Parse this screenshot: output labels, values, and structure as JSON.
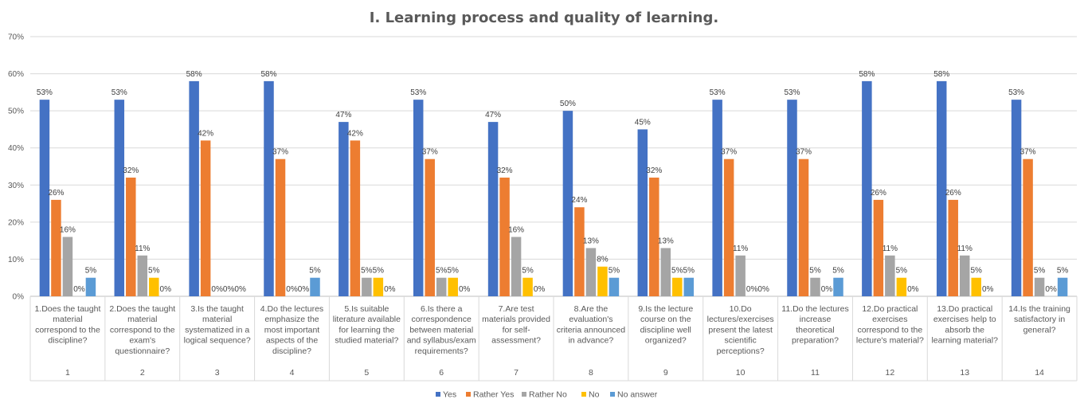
{
  "chart_data": {
    "type": "bar",
    "title": "I. Learning process and quality of learning.",
    "xlabel": "",
    "ylabel": "",
    "ylim": [
      0,
      70
    ],
    "yticks": [
      "0%",
      "10%",
      "20%",
      "30%",
      "40%",
      "50%",
      "60%",
      "70%"
    ],
    "grid": true,
    "legend_position": "bottom",
    "categories": [
      "1.Does the taught material correspond to the discipline?",
      "2.Does the taught material correspond to the exam's questionnaire?",
      "3.Is the taught material systematized in a logical sequence?",
      "4.Do the lectures emphasize the most important aspects of the discipline?",
      "5.Is suitable literature available for learning the studied material?",
      "6.Is there a correspondence between material and syllabus/exam requirements?",
      "7.Are test materials provided for self-assessment?",
      "8.Are the evaluation's criteria announced in advance?",
      "9.Is the lecture course on the discipline well organized?",
      "10.Do lectures/exercises present the latest scientific perceptions?",
      "11.Do the lectures increase theoretical preparation?",
      "12.Do practical exercises correspond to the lecture's material?",
      "13.Do practical exercises help to absorb the learning material?",
      "14.Is the training satisfactory in general?"
    ],
    "category_lines": [
      [
        "1.Does the taught",
        "material",
        "correspond to the",
        "discipline?"
      ],
      [
        "2.Does the taught",
        "material",
        "correspond to the",
        "exam's",
        "questionnaire?"
      ],
      [
        "3.Is the taught",
        "material",
        "systematized in a",
        "logical sequence?"
      ],
      [
        "4.Do the lectures",
        "emphasize the",
        "most important",
        "aspects of the",
        "discipline?"
      ],
      [
        "5.Is suitable",
        "literature available",
        "for learning the",
        "studied material?"
      ],
      [
        "6.Is there a",
        "correspondence",
        "between material",
        "and syllabus/exam",
        "requirements?"
      ],
      [
        "7.Are test",
        "materials provided",
        "for self-",
        "assessment?"
      ],
      [
        "8.Are the",
        "evaluation's",
        "criteria announced",
        "in advance?"
      ],
      [
        "9.Is the lecture",
        "course on the",
        "discipline well",
        "organized?"
      ],
      [
        "10.Do",
        "lectures/exercises",
        "present the latest",
        "scientific",
        "perceptions?"
      ],
      [
        "11.Do the lectures",
        "increase",
        "theoretical",
        "preparation?"
      ],
      [
        "12.Do practical",
        "exercises",
        "correspond to the",
        "lecture's material?"
      ],
      [
        "13.Do practical",
        "exercises help to",
        "absorb the",
        "learning material?"
      ],
      [
        "14.Is the training",
        "satisfactory in",
        "general?"
      ]
    ],
    "category_numbers": [
      "1",
      "2",
      "3",
      "4",
      "5",
      "6",
      "7",
      "8",
      "9",
      "10",
      "11",
      "12",
      "13",
      "14"
    ],
    "series": [
      {
        "name": "Yes",
        "color": "#4472C4",
        "values": [
          53,
          53,
          58,
          58,
          47,
          53,
          47,
          50,
          45,
          53,
          53,
          58,
          58,
          53
        ]
      },
      {
        "name": "Rather Yes",
        "color": "#ED7D31",
        "values": [
          26,
          32,
          42,
          37,
          42,
          37,
          32,
          24,
          32,
          37,
          37,
          26,
          26,
          37
        ]
      },
      {
        "name": "Rather No",
        "color": "#A5A5A5",
        "values": [
          16,
          11,
          0,
          0,
          5,
          5,
          16,
          13,
          13,
          11,
          5,
          11,
          11,
          5
        ]
      },
      {
        "name": "No",
        "color": "#FFC000",
        "values": [
          0,
          5,
          0,
          0,
          5,
          5,
          5,
          8,
          5,
          0,
          0,
          5,
          5,
          0
        ]
      },
      {
        "name": "No answer",
        "color": "#5B9BD5",
        "values": [
          5,
          0,
          0,
          5,
          0,
          0,
          0,
          5,
          5,
          0,
          5,
          0,
          0,
          5
        ]
      }
    ],
    "value_suffix": "%"
  }
}
